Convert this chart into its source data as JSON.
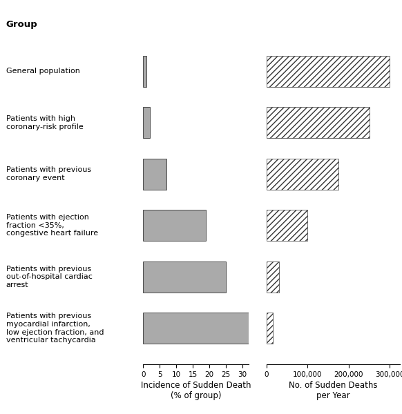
{
  "groups": [
    "General population",
    "Patients with high\ncoronary-risk profile",
    "Patients with previous\ncoronary event",
    "Patients with ejection\nfraction <35%,\ncongestive heart failure",
    "Patients with previous\nout-of-hospital cardiac\narrest",
    "Patients with previous\nmyocardial infarction,\nlow ejection fraction, and\nventricular tachycardia"
  ],
  "incidence": [
    1,
    2,
    7,
    19,
    25,
    32
  ],
  "no_deaths": [
    300000,
    250000,
    175000,
    100000,
    30000,
    15000
  ],
  "incidence_xlim": [
    0,
    32
  ],
  "deaths_xlim": [
    0,
    325000
  ],
  "incidence_xticks": [
    0,
    5,
    10,
    15,
    20,
    25,
    30
  ],
  "deaths_xticks": [
    0,
    100000,
    200000,
    300000
  ],
  "deaths_xtick_labels": [
    "0",
    "100,000",
    "200,000",
    "300,000"
  ],
  "bar_color_left": "#aaaaaa",
  "hatch_pattern": "////",
  "bar_height": 0.6,
  "title_text": "Group",
  "xlabel_left": "Incidence of Sudden Death\n(% of group)",
  "xlabel_right": "No. of Sudden Deaths\nper Year",
  "header_bg": "#c8c8c8",
  "fig_bg": "#ffffff",
  "label_fontsize": 8.0,
  "tick_fontsize": 7.5,
  "xlabel_fontsize": 8.5
}
